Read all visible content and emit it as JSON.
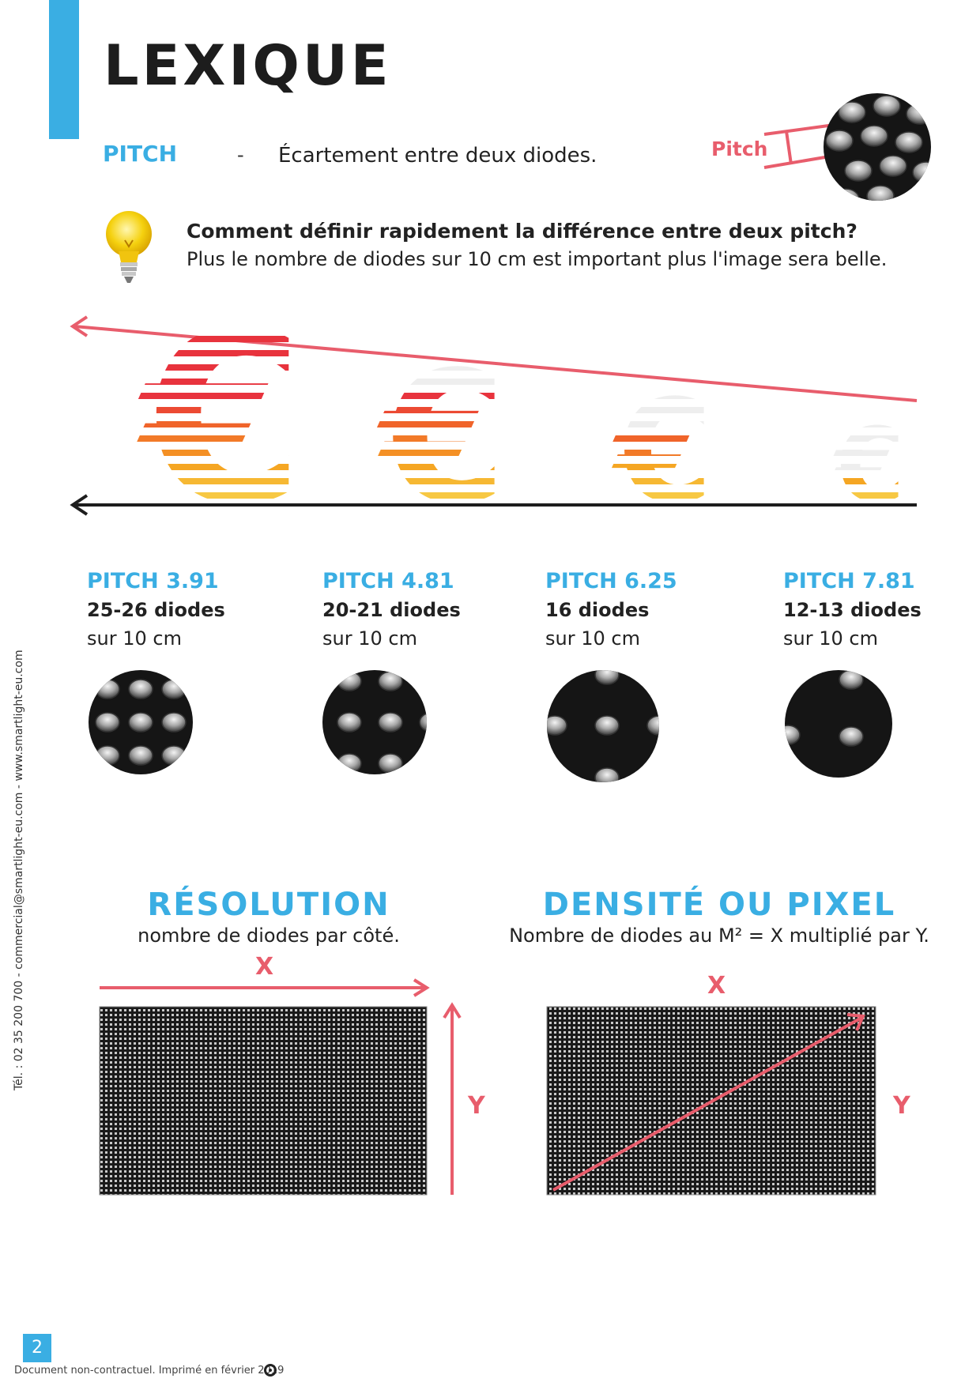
{
  "header": {
    "title": "LEXIQUE"
  },
  "pitch_term": {
    "label": "PITCH",
    "dash": "-",
    "definition": "Écartement entre deux diodes.",
    "callout": "Pitch"
  },
  "tip": {
    "icon": "lightbulb-icon",
    "question": "Comment définir rapidement la différence entre deux pitch?",
    "answer": "Plus le nombre de diodes sur 10 cm est important plus l'image sera belle."
  },
  "pitches": [
    {
      "name": "PITCH 3.91",
      "diodes": "25-26 diodes",
      "unit": "sur 10 cm"
    },
    {
      "name": "PITCH 4.81",
      "diodes": "20-21 diodes",
      "unit": "sur 10 cm"
    },
    {
      "name": "PITCH 6.25",
      "diodes": "16 diodes",
      "unit": "sur 10 cm"
    },
    {
      "name": "PITCH 7.81",
      "diodes": "12-13 diodes",
      "unit": "sur 10 cm"
    }
  ],
  "resolution": {
    "title": "RÉSOLUTION",
    "subtitle": "nombre de diodes par côté.",
    "x_label": "X",
    "y_label": "Y"
  },
  "density": {
    "title": "DENSITÉ OU PIXEL",
    "subtitle": "Nombre de diodes au M² = X multiplié par Y.",
    "x_label": "X",
    "y_label": "Y"
  },
  "sidebar": {
    "contact": "Tél. : 02 35 200 700 - commercial@smartlight-eu.com - www.smartlight-eu.com"
  },
  "footer": {
    "page_number": "2",
    "note": "Document non-contractuel. Imprimé en février 2019"
  },
  "colors": {
    "accent": "#3aaee3",
    "arrow": "#e85d6c",
    "euro_gradient": [
      "#e8333d",
      "#f0642a",
      "#f5a623",
      "#f7c843"
    ]
  }
}
